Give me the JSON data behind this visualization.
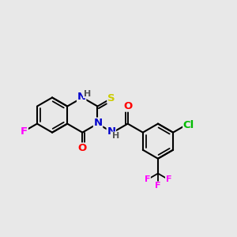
{
  "bg_color": "#e8e8e8",
  "bond_color": "#000000",
  "atom_colors": {
    "N": "#0000cc",
    "O": "#ff0000",
    "S": "#cccc00",
    "F": "#ff00ff",
    "Cl": "#00bb00",
    "H_color": "#555555",
    "C": "#000000"
  },
  "font_size": 9.5,
  "small_font": 8.0
}
